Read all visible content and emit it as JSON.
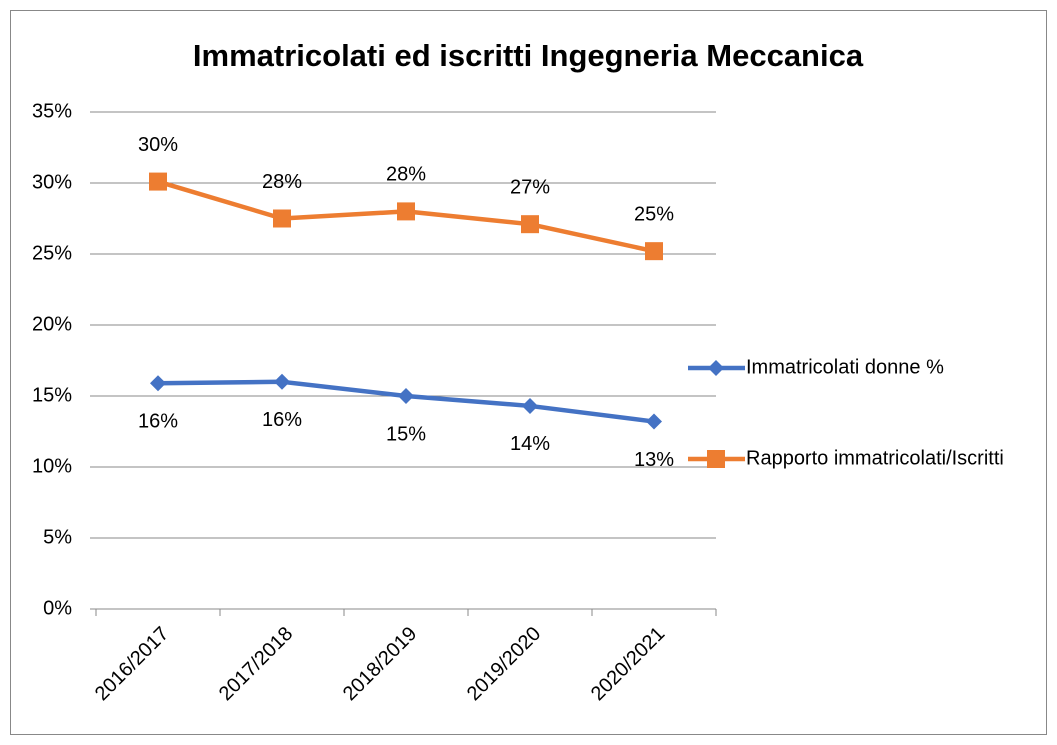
{
  "chart_data": {
    "type": "line",
    "title": "Immatricolati ed iscritti Ingegneria Meccanica",
    "categories": [
      "2016/2017",
      "2017/2018",
      "2018/2019",
      "2019/2020",
      "2020/2021"
    ],
    "series": [
      {
        "name": "Immatricolati donne %",
        "color": "#4472c4",
        "marker": "diamond",
        "label_position": "below",
        "values": [
          15.9,
          16.0,
          15.0,
          14.3,
          13.2
        ],
        "value_labels": [
          "16%",
          "16%",
          "15%",
          "14%",
          "13%"
        ]
      },
      {
        "name": "Rapporto immatricolati/Iscritti",
        "color": "#ed7d31",
        "marker": "square",
        "label_position": "above",
        "values": [
          30.1,
          27.5,
          28.0,
          27.1,
          25.2
        ],
        "value_labels": [
          "30%",
          "28%",
          "28%",
          "27%",
          "25%"
        ]
      }
    ],
    "ylim": [
      0,
      35
    ],
    "yticks": [
      {
        "value": 0,
        "label": "0%"
      },
      {
        "value": 5,
        "label": "5%"
      },
      {
        "value": 10,
        "label": "10%"
      },
      {
        "value": 15,
        "label": "15%"
      },
      {
        "value": 20,
        "label": "20%"
      },
      {
        "value": 25,
        "label": "25%"
      },
      {
        "value": 30,
        "label": "30%"
      },
      {
        "value": 35,
        "label": "35%"
      }
    ],
    "grid": true,
    "legend": "right"
  }
}
